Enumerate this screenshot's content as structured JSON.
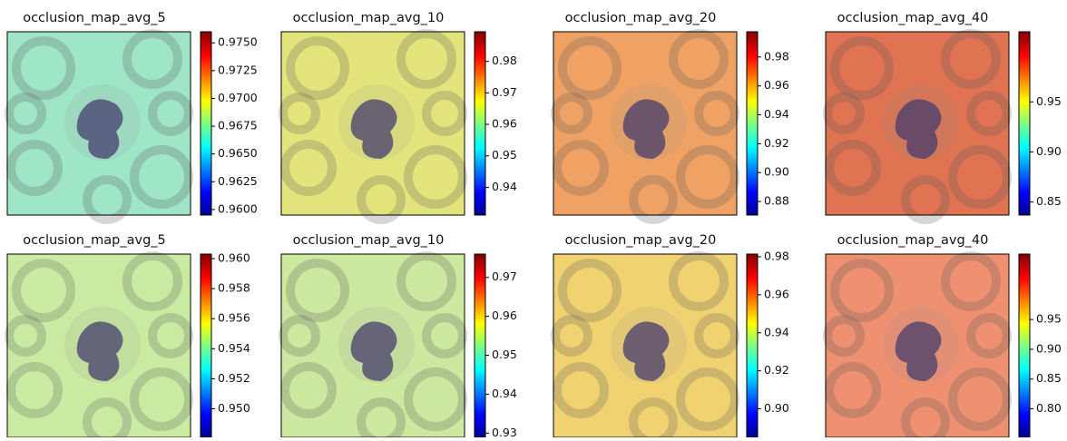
{
  "chart_data": [
    {
      "type": "image",
      "title": "occlusion_map_avg_5",
      "color": "#9fe6c6",
      "ylim": [
        0.9595,
        0.976
      ],
      "yticks": [
        {
          "value": 0.96,
          "label": "0.9600"
        },
        0.9625,
        {
          "value": 0.965,
          "label": "0.9650"
        },
        0.9675,
        {
          "value": 0.97,
          "label": "0.9700"
        },
        0.9725,
        {
          "value": 0.975,
          "label": "0.9750"
        }
      ]
    },
    {
      "type": "image",
      "title": "occlusion_map_avg_10",
      "color": "#e3e57c",
      "ylim": [
        0.9312,
        0.9894
      ],
      "yticks": [
        0.94,
        0.95,
        0.96,
        0.97,
        0.98
      ]
    },
    {
      "type": "image",
      "title": "occlusion_map_avg_20",
      "color": "#efa263",
      "ylim": [
        0.8706,
        0.9975
      ],
      "yticks": [
        {
          "value": 0.88,
          "label": "0.88"
        },
        {
          "value": 0.9,
          "label": "0.90"
        },
        0.92,
        0.94,
        0.96,
        0.98
      ]
    },
    {
      "type": "image",
      "title": "occlusion_map_avg_40",
      "color": "#df7352",
      "ylim": [
        0.837,
        1.02
      ],
      "yticks": [
        0.85,
        {
          "value": 0.9,
          "label": "0.90"
        },
        0.95
      ]
    },
    {
      "type": "image",
      "title": "occlusion_map_avg_5",
      "color": "#c9eca2",
      "ylim": [
        0.9481,
        0.9603
      ],
      "yticks": [
        {
          "value": 0.95,
          "label": "0.950"
        },
        0.952,
        0.954,
        0.956,
        0.958,
        {
          "value": 0.96,
          "label": "0.960"
        }
      ]
    },
    {
      "type": "image",
      "title": "occlusion_map_avg_10",
      "color": "#cde89f",
      "ylim": [
        0.9289,
        0.976
      ],
      "yticks": [
        {
          "value": 0.93,
          "label": "0.93"
        },
        0.94,
        0.95,
        0.96,
        0.97
      ]
    },
    {
      "type": "image",
      "title": "occlusion_map_avg_20",
      "color": "#f0d271",
      "ylim": [
        0.885,
        0.9814
      ],
      "yticks": [
        {
          "value": 0.9,
          "label": "0.90"
        },
        0.92,
        0.94,
        0.96,
        0.98
      ]
    },
    {
      "type": "image",
      "title": "occlusion_map_avg_40",
      "color": "#ef9070",
      "ylim": [
        0.752,
        1.06
      ],
      "yticks": [
        {
          "value": 0.8,
          "label": "0.80"
        },
        0.85,
        {
          "value": 0.9,
          "label": "0.90"
        },
        0.95
      ]
    }
  ]
}
